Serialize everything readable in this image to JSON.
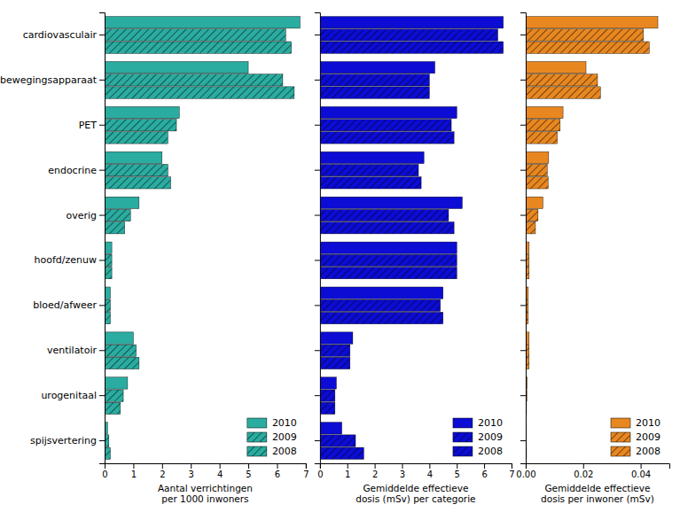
{
  "chart_data": [
    {
      "type": "bar",
      "orientation": "horizontal",
      "legend": "lower right",
      "categories": [
        "cardiovasculair",
        "bewegingsapparaat",
        "PET",
        "endocrine",
        "overig",
        "hoofd/zenuw",
        "bloed/afweer",
        "ventilatoir",
        "urogenitaal",
        "spijsvertering"
      ],
      "series": [
        {
          "name": "2010",
          "color": "#2aaca0",
          "values": [
            6.8,
            5.0,
            2.6,
            2.0,
            1.2,
            0.25,
            0.2,
            1.0,
            0.8,
            0.1
          ]
        },
        {
          "name": "2009",
          "color": "#2aaca0",
          "values": [
            6.3,
            6.2,
            2.5,
            2.2,
            0.9,
            0.25,
            0.2,
            1.1,
            0.65,
            0.15
          ]
        },
        {
          "name": "2008",
          "color": "#2aaca0",
          "values": [
            6.5,
            6.6,
            2.2,
            2.3,
            0.7,
            0.25,
            0.2,
            1.2,
            0.55,
            0.2
          ]
        }
      ],
      "x_label": "Aantal verrichtingen\nper 1000 inwoners",
      "xlim": [
        0,
        7
      ],
      "xticks": [
        0,
        1,
        2,
        3,
        4,
        5,
        6,
        7
      ]
    },
    {
      "type": "bar",
      "orientation": "horizontal",
      "legend": "lower right",
      "tick_labels": "x",
      "categories": [
        "cardiovasculair",
        "bewegingsapparaat",
        "PET",
        "endocrine",
        "overig",
        "hoofd/zenuw",
        "bloed/afweer",
        "ventilatoir",
        "urogenitaal",
        "spijsvertering"
      ],
      "series": [
        {
          "name": "2010",
          "color": "#0c0cd4",
          "values": [
            6.7,
            4.2,
            5.0,
            3.8,
            5.2,
            5.0,
            4.5,
            1.2,
            0.6,
            0.8
          ]
        },
        {
          "name": "2009",
          "color": "#0c0cd4",
          "values": [
            6.5,
            4.0,
            4.8,
            3.6,
            4.7,
            5.0,
            4.4,
            1.1,
            0.55,
            1.3
          ]
        },
        {
          "name": "2008",
          "color": "#0c0cd4",
          "values": [
            6.7,
            4.0,
            4.9,
            3.7,
            4.9,
            5.0,
            4.5,
            1.1,
            0.55,
            1.6
          ]
        }
      ],
      "x_label": "Gemiddelde effectieve\ndosis (mSv) per categorie",
      "xlim": [
        0,
        7
      ],
      "xticks": [
        0,
        1,
        2,
        3,
        4,
        5,
        6,
        7
      ]
    },
    {
      "type": "bar",
      "orientation": "horizontal",
      "legend": "lower right",
      "tick_labels": "x",
      "categories": [
        "cardiovasculair",
        "bewegingsapparaat",
        "PET",
        "endocrine",
        "overig",
        "hoofd/zenuw",
        "bloed/afweer",
        "ventilatoir",
        "urogenitaal",
        "spijsvertering"
      ],
      "series": [
        {
          "name": "2010",
          "color": "#e88720",
          "values": [
            0.046,
            0.021,
            0.013,
            0.008,
            0.006,
            0.0012,
            0.0009,
            0.0012,
            0.0005,
            8e-05
          ]
        },
        {
          "name": "2009",
          "color": "#e88720",
          "values": [
            0.041,
            0.025,
            0.012,
            0.0075,
            0.0043,
            0.0012,
            0.0009,
            0.0012,
            0.0004,
            0.0002
          ]
        },
        {
          "name": "2008",
          "color": "#e88720",
          "values": [
            0.043,
            0.026,
            0.011,
            0.0078,
            0.0034,
            0.0012,
            0.0009,
            0.0012,
            0.0003,
            0.0003
          ]
        }
      ],
      "x_label": "Gemiddelde effectieve\ndosis per inwoner (mSv)",
      "xlim": [
        0,
        0.05
      ],
      "xticks": [
        {
          "value": 0,
          "label": "0.00"
        },
        0.02,
        0.04
      ]
    }
  ]
}
